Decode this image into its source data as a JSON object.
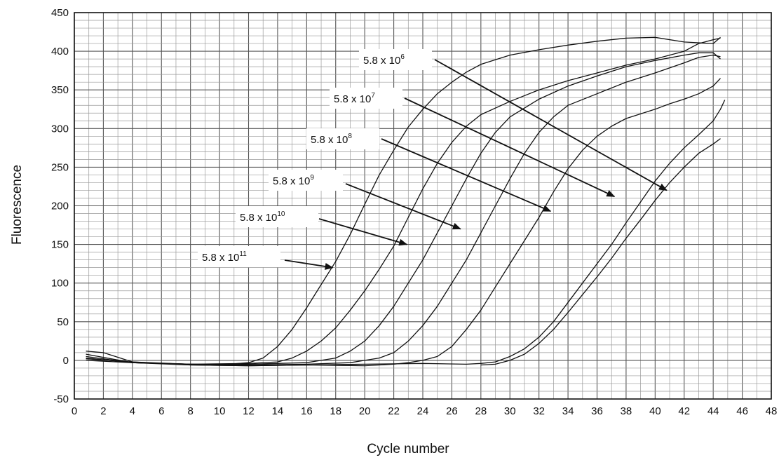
{
  "chart_data": {
    "type": "line",
    "title": "",
    "xlabel": "Cycle number",
    "ylabel": "Fluorescence",
    "xlim": [
      0,
      48
    ],
    "ylim": [
      -50,
      450
    ],
    "grid": true,
    "x_ticks": [
      "0",
      "2",
      "4",
      "6",
      "8",
      "10",
      "12",
      "14",
      "16",
      "18",
      "20",
      "22",
      "24",
      "26",
      "28",
      "30",
      "32",
      "34",
      "36",
      "38",
      "40",
      "42",
      "44",
      "46",
      "48"
    ],
    "y_ticks": [
      "-50",
      "0",
      "50",
      "100",
      "150",
      "200",
      "250",
      "300",
      "350",
      "400",
      "450"
    ],
    "series": [
      {
        "label": "5.8 x 10^11",
        "points": [
          [
            0.8,
            3
          ],
          [
            4,
            -3
          ],
          [
            8,
            -5
          ],
          [
            10,
            -6
          ],
          [
            12,
            -3
          ],
          [
            13,
            3
          ],
          [
            14,
            18
          ],
          [
            15,
            40
          ],
          [
            16,
            68
          ],
          [
            17,
            98
          ],
          [
            18,
            128
          ],
          [
            19,
            163
          ],
          [
            20,
            202
          ],
          [
            21,
            240
          ],
          [
            22,
            272
          ],
          [
            23,
            302
          ],
          [
            24,
            325
          ],
          [
            25,
            345
          ],
          [
            26,
            360
          ],
          [
            27,
            373
          ],
          [
            28,
            383
          ],
          [
            30,
            395
          ],
          [
            32,
            402
          ],
          [
            34,
            408
          ],
          [
            36,
            413
          ],
          [
            38,
            417
          ],
          [
            40,
            418
          ],
          [
            42,
            412
          ],
          [
            44,
            410
          ],
          [
            44.5,
            418
          ]
        ]
      },
      {
        "label": "5.8 x 10^10",
        "points": [
          [
            0.8,
            8
          ],
          [
            4,
            -3
          ],
          [
            8,
            -5
          ],
          [
            12,
            -4
          ],
          [
            14,
            -2
          ],
          [
            15,
            3
          ],
          [
            16,
            12
          ],
          [
            17,
            25
          ],
          [
            18,
            42
          ],
          [
            19,
            65
          ],
          [
            20,
            90
          ],
          [
            21,
            118
          ],
          [
            22,
            148
          ],
          [
            23,
            185
          ],
          [
            24,
            222
          ],
          [
            25,
            255
          ],
          [
            26,
            282
          ],
          [
            27,
            303
          ],
          [
            28,
            318
          ],
          [
            30,
            335
          ],
          [
            32,
            350
          ],
          [
            34,
            362
          ],
          [
            36,
            372
          ],
          [
            38,
            382
          ],
          [
            40,
            390
          ],
          [
            42,
            400
          ],
          [
            43,
            410
          ],
          [
            44,
            415
          ],
          [
            44.5,
            417
          ]
        ]
      },
      {
        "label": "5.8 x 10^9",
        "points": [
          [
            0.8,
            12
          ],
          [
            2,
            10
          ],
          [
            4,
            -2
          ],
          [
            8,
            -5
          ],
          [
            12,
            -5
          ],
          [
            16,
            -3
          ],
          [
            17,
            0
          ],
          [
            18,
            3
          ],
          [
            19,
            12
          ],
          [
            20,
            25
          ],
          [
            21,
            45
          ],
          [
            22,
            70
          ],
          [
            23,
            100
          ],
          [
            24,
            130
          ],
          [
            25,
            165
          ],
          [
            26,
            200
          ],
          [
            27,
            235
          ],
          [
            28,
            268
          ],
          [
            29,
            295
          ],
          [
            30,
            315
          ],
          [
            32,
            338
          ],
          [
            34,
            355
          ],
          [
            36,
            368
          ],
          [
            38,
            380
          ],
          [
            40,
            388
          ],
          [
            42,
            395
          ],
          [
            43,
            398
          ],
          [
            44,
            398
          ],
          [
            44.5,
            390
          ]
        ]
      },
      {
        "label": "5.8 x 10^8",
        "points": [
          [
            0.8,
            5
          ],
          [
            4,
            -3
          ],
          [
            8,
            -5
          ],
          [
            12,
            -6
          ],
          [
            16,
            -5
          ],
          [
            19,
            -3
          ],
          [
            20,
            0
          ],
          [
            21,
            3
          ],
          [
            22,
            10
          ],
          [
            23,
            25
          ],
          [
            24,
            45
          ],
          [
            25,
            70
          ],
          [
            26,
            100
          ],
          [
            27,
            130
          ],
          [
            28,
            165
          ],
          [
            29,
            200
          ],
          [
            30,
            235
          ],
          [
            31,
            268
          ],
          [
            32,
            295
          ],
          [
            33,
            315
          ],
          [
            34,
            330
          ],
          [
            36,
            345
          ],
          [
            38,
            360
          ],
          [
            40,
            372
          ],
          [
            42,
            385
          ],
          [
            43,
            392
          ],
          [
            44,
            395
          ],
          [
            44.5,
            393
          ]
        ]
      },
      {
        "label": "5.8 x 10^7",
        "points": [
          [
            0.8,
            0
          ],
          [
            4,
            -3
          ],
          [
            8,
            -6
          ],
          [
            12,
            -7
          ],
          [
            16,
            -6
          ],
          [
            20,
            -7
          ],
          [
            22,
            -5
          ],
          [
            23,
            -3
          ],
          [
            24,
            0
          ],
          [
            25,
            5
          ],
          [
            26,
            18
          ],
          [
            27,
            40
          ],
          [
            28,
            65
          ],
          [
            29,
            95
          ],
          [
            30,
            125
          ],
          [
            31,
            155
          ],
          [
            32,
            185
          ],
          [
            33,
            218
          ],
          [
            34,
            248
          ],
          [
            35,
            272
          ],
          [
            36,
            290
          ],
          [
            37,
            303
          ],
          [
            38,
            313
          ],
          [
            40,
            325
          ],
          [
            41,
            332
          ],
          [
            42,
            338
          ],
          [
            43,
            345
          ],
          [
            44,
            355
          ],
          [
            44.5,
            365
          ]
        ]
      },
      {
        "label": "5.8 x 10^6",
        "points": [
          [
            0.8,
            2
          ],
          [
            4,
            -2
          ],
          [
            8,
            -6
          ],
          [
            12,
            -7
          ],
          [
            16,
            -6
          ],
          [
            20,
            -5
          ],
          [
            24,
            -4
          ],
          [
            27,
            -5
          ],
          [
            28,
            -4
          ],
          [
            29,
            -2
          ],
          [
            30,
            5
          ],
          [
            31,
            15
          ],
          [
            32,
            30
          ],
          [
            33,
            50
          ],
          [
            34,
            75
          ],
          [
            35,
            100
          ],
          [
            36,
            125
          ],
          [
            37,
            150
          ],
          [
            38,
            178
          ],
          [
            39,
            205
          ],
          [
            40,
            232
          ],
          [
            41,
            255
          ],
          [
            42,
            275
          ],
          [
            43,
            292
          ],
          [
            44,
            310
          ],
          [
            44.5,
            325
          ],
          [
            44.8,
            337
          ]
        ]
      },
      {
        "label": "",
        "points": [
          [
            28,
            -6
          ],
          [
            29,
            -5
          ],
          [
            30,
            0
          ],
          [
            31,
            8
          ],
          [
            32,
            22
          ],
          [
            33,
            40
          ],
          [
            34,
            62
          ],
          [
            35,
            85
          ],
          [
            36,
            108
          ],
          [
            37,
            132
          ],
          [
            38,
            158
          ],
          [
            39,
            182
          ],
          [
            40,
            207
          ],
          [
            41,
            230
          ],
          [
            42,
            250
          ],
          [
            43,
            268
          ],
          [
            44,
            280
          ],
          [
            44.5,
            287
          ]
        ]
      }
    ],
    "annotations": [
      {
        "base": "5.8 x 10",
        "exp": "6"
      },
      {
        "base": "5.8 x 10",
        "exp": "7"
      },
      {
        "base": "5.8 x 10",
        "exp": "8"
      },
      {
        "base": "5.8 x 10",
        "exp": "9"
      },
      {
        "base": "5.8 x 10",
        "exp": "10"
      },
      {
        "base": "5.8 x 10",
        "exp": "11"
      }
    ],
    "arrow_targets": [
      [
        40.8,
        220
      ],
      [
        37.2,
        212
      ],
      [
        32.8,
        193
      ],
      [
        26.6,
        170
      ],
      [
        22.9,
        150
      ],
      [
        17.8,
        120
      ]
    ]
  }
}
